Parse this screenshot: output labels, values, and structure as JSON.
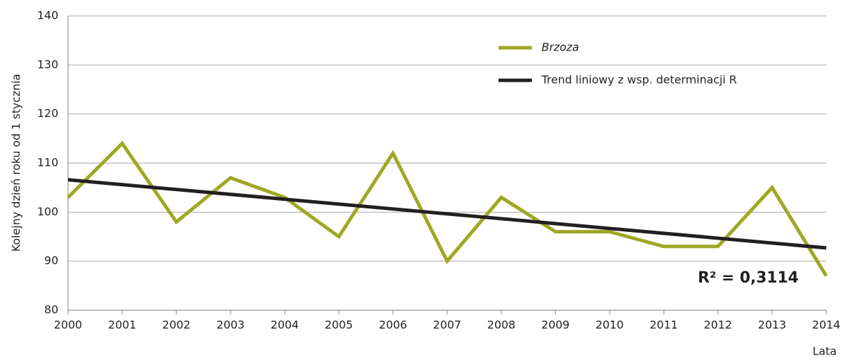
{
  "chart_data": {
    "type": "line",
    "y_label": "Kolejny dzień roku od 1 stycznia",
    "x_label": "Lata",
    "x": [
      2000,
      2001,
      2002,
      2003,
      2004,
      2005,
      2006,
      2007,
      2008,
      2009,
      2010,
      2011,
      2012,
      2013,
      2014
    ],
    "series": [
      {
        "name": "Brzoza",
        "color": "#9ea824",
        "values": [
          103,
          114,
          98,
          107,
          103,
          95,
          112,
          90,
          103,
          96,
          96,
          93,
          93,
          105,
          87
        ]
      },
      {
        "name": "Trend liniowy z wsp. determinacji R",
        "color": "#231f20",
        "x": [
          2000,
          2014
        ],
        "values": [
          106.6,
          92.7
        ]
      }
    ],
    "annotation": "R² = 0,3114",
    "xlim": [
      2000,
      2014
    ],
    "xticks": [
      2000,
      2001,
      2002,
      2003,
      2004,
      2005,
      2006,
      2007,
      2008,
      2009,
      2010,
      2011,
      2012,
      2013,
      2014
    ],
    "ylim": [
      80,
      140
    ],
    "yticks": [
      80,
      90,
      100,
      110,
      120,
      130,
      140
    ],
    "grid": true,
    "legend": "upper-right"
  }
}
